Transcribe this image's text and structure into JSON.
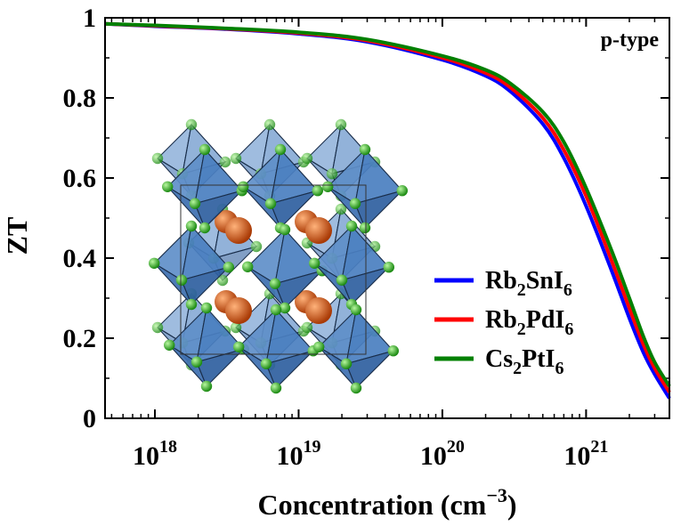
{
  "chart_data": {
    "type": "line",
    "annotation": "p-type",
    "xlabel": "Concentration (cm",
    "xlabel_sup": "−3",
    "xlabel_end": ")",
    "ylabel": "ZT",
    "x_scale": "log",
    "xlim": [
      4.5e+17,
      3.8e+21
    ],
    "ylim": [
      0,
      1
    ],
    "x_ticks": [
      {
        "base": "10",
        "exp": "18"
      },
      {
        "base": "10",
        "exp": "19"
      },
      {
        "base": "10",
        "exp": "20"
      },
      {
        "base": "10",
        "exp": "21"
      }
    ],
    "y_ticks": [
      "0",
      "0.2",
      "0.4",
      "0.6",
      "0.8",
      "1"
    ],
    "legend_position": "lower-right",
    "inset": "crystal structure illustration (octahedra with cations)",
    "series": [
      {
        "name": "Rb2SnI6",
        "label_parts": [
          "Rb",
          "2",
          "SnI",
          "6"
        ],
        "color": "#0000ff",
        "x": [
          4.5e+17,
          1e+18,
          3e+18,
          1e+19,
          3e+19,
          1e+20,
          2e+20,
          3e+20,
          5e+20,
          7e+20,
          1e+21,
          1.5e+21,
          2e+21,
          2.5e+21,
          3e+21,
          3.8e+21
        ],
        "y": [
          0.985,
          0.979,
          0.972,
          0.96,
          0.94,
          0.895,
          0.855,
          0.815,
          0.735,
          0.65,
          0.53,
          0.37,
          0.25,
          0.165,
          0.11,
          0.05
        ]
      },
      {
        "name": "Rb2PdI6",
        "label_parts": [
          "Rb",
          "2",
          "PdI",
          "6"
        ],
        "color": "#ff0000",
        "x": [
          4.5e+17,
          1e+18,
          3e+18,
          1e+19,
          3e+19,
          1e+20,
          2e+20,
          3e+20,
          5e+20,
          7e+20,
          1e+21,
          1.5e+21,
          2e+21,
          2.5e+21,
          3e+21,
          3.8e+21
        ],
        "y": [
          0.985,
          0.98,
          0.973,
          0.962,
          0.943,
          0.9,
          0.862,
          0.825,
          0.75,
          0.67,
          0.555,
          0.395,
          0.275,
          0.185,
          0.125,
          0.065
        ]
      },
      {
        "name": "Cs2PtI6",
        "label_parts": [
          "Cs",
          "2",
          "PtI",
          "6"
        ],
        "color": "#008000",
        "x": [
          4.5e+17,
          1e+18,
          3e+18,
          1e+19,
          3e+19,
          1e+20,
          2e+20,
          3e+20,
          5e+20,
          7e+20,
          1e+21,
          1.5e+21,
          2e+21,
          2.5e+21,
          3e+21,
          3.8e+21
        ],
        "y": [
          0.985,
          0.981,
          0.974,
          0.964,
          0.946,
          0.905,
          0.87,
          0.835,
          0.765,
          0.69,
          0.575,
          0.42,
          0.3,
          0.205,
          0.14,
          0.08
        ]
      }
    ]
  }
}
